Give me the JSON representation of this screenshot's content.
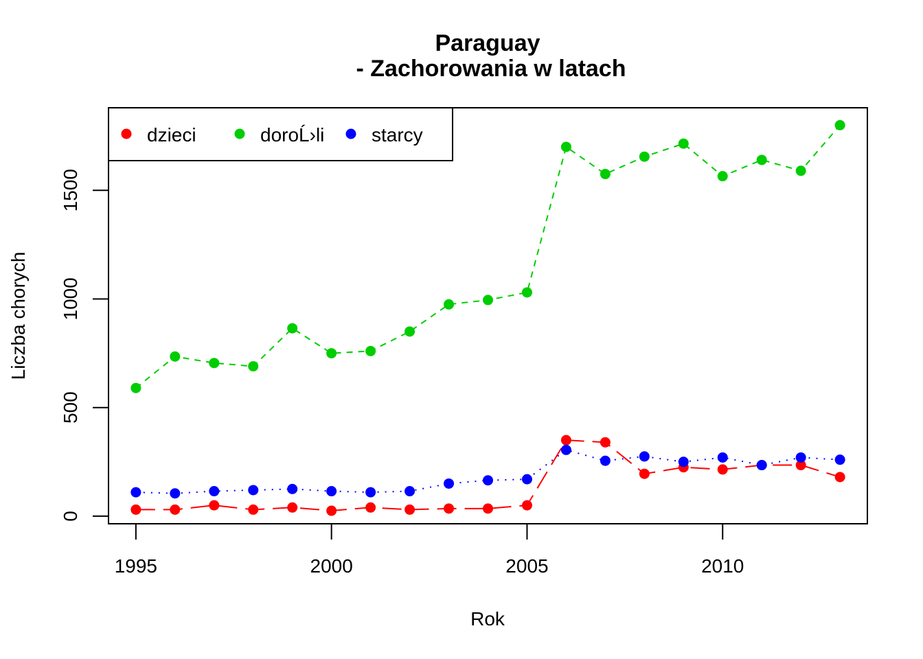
{
  "chart_data": {
    "type": "line",
    "title": [
      "Paraguay",
      "- Zachorowania w latach"
    ],
    "xlabel": "Rok",
    "ylabel": "Liczba chorych",
    "xlim": [
      1994.3,
      2013.7
    ],
    "ylim": [
      -35,
      1880
    ],
    "x_ticks": [
      1995,
      2000,
      2005,
      2010
    ],
    "x_tick_labels": [
      "1995",
      "2000",
      "2005",
      "2010"
    ],
    "y_ticks": [
      0,
      500,
      1000,
      1500
    ],
    "y_tick_labels": [
      "0",
      "500",
      "1000",
      "1500"
    ],
    "grid": false,
    "legend_position": "top-left",
    "x": [
      1995,
      1996,
      1997,
      1998,
      1999,
      2000,
      2001,
      2002,
      2003,
      2004,
      2005,
      2006,
      2007,
      2008,
      2009,
      2010,
      2011,
      2012,
      2013
    ],
    "series": [
      {
        "name": "dzieci",
        "color": "#ff0000",
        "dash": "long-dash",
        "values": [
          30,
          30,
          50,
          30,
          40,
          25,
          40,
          30,
          35,
          35,
          50,
          350,
          340,
          195,
          225,
          215,
          235,
          235,
          180
        ]
      },
      {
        "name": "doroĹ›li",
        "color": "#00cd00",
        "dash": "dashed",
        "values": [
          590,
          735,
          705,
          690,
          865,
          750,
          760,
          850,
          975,
          995,
          1030,
          1700,
          1575,
          1655,
          1715,
          1565,
          1640,
          1590,
          1800
        ]
      },
      {
        "name": "starcy",
        "color": "#0000ff",
        "dash": "dotted",
        "values": [
          110,
          105,
          115,
          120,
          125,
          115,
          110,
          115,
          150,
          165,
          170,
          305,
          255,
          275,
          250,
          270,
          235,
          270,
          260
        ]
      }
    ]
  }
}
